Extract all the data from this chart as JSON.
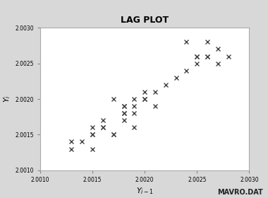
{
  "title": "LAG PLOT",
  "xlabel_parts": [
    "Y",
    "i-1"
  ],
  "ylabel": "Y_i",
  "xlim": [
    2.001,
    2.003
  ],
  "ylim": [
    2.001,
    2.003
  ],
  "xticks": [
    2.001,
    2.0015,
    2.002,
    2.0025,
    2.003
  ],
  "yticks": [
    2.001,
    2.0015,
    2.002,
    2.0025,
    2.003
  ],
  "marker": "x",
  "marker_color": "#444444",
  "marker_size": 4,
  "marker_lw": 1.0,
  "watermark": "MAVRO.DAT",
  "fig_bg": "#d8d8d8",
  "plot_bg": "#ffffff",
  "x": [
    2.0013,
    2.0013,
    2.0014,
    2.0015,
    2.0015,
    2.0015,
    2.0015,
    2.0016,
    2.0016,
    2.0016,
    2.0017,
    2.0017,
    2.0017,
    2.0018,
    2.0018,
    2.0018,
    2.0018,
    2.0018,
    2.0019,
    2.0019,
    2.0019,
    2.0019,
    2.002,
    2.002,
    2.002,
    2.0021,
    2.0021,
    2.0022,
    2.0023,
    2.0024,
    2.0024,
    2.0025,
    2.0025,
    2.0025,
    2.0026,
    2.0026,
    2.0026,
    2.0027,
    2.0027,
    2.0028
  ],
  "y": [
    2.0013,
    2.0014,
    2.0014,
    2.0013,
    2.0015,
    2.0015,
    2.0016,
    2.0016,
    2.0016,
    2.0017,
    2.0015,
    2.0015,
    2.002,
    2.0017,
    2.0018,
    2.0018,
    2.0019,
    2.0019,
    2.0016,
    2.0018,
    2.0019,
    2.002,
    2.002,
    2.002,
    2.0021,
    2.0019,
    2.0021,
    2.0022,
    2.0023,
    2.0024,
    2.0028,
    2.0025,
    2.0026,
    2.0026,
    2.0026,
    2.0026,
    2.0028,
    2.0025,
    2.0027,
    2.0026
  ]
}
